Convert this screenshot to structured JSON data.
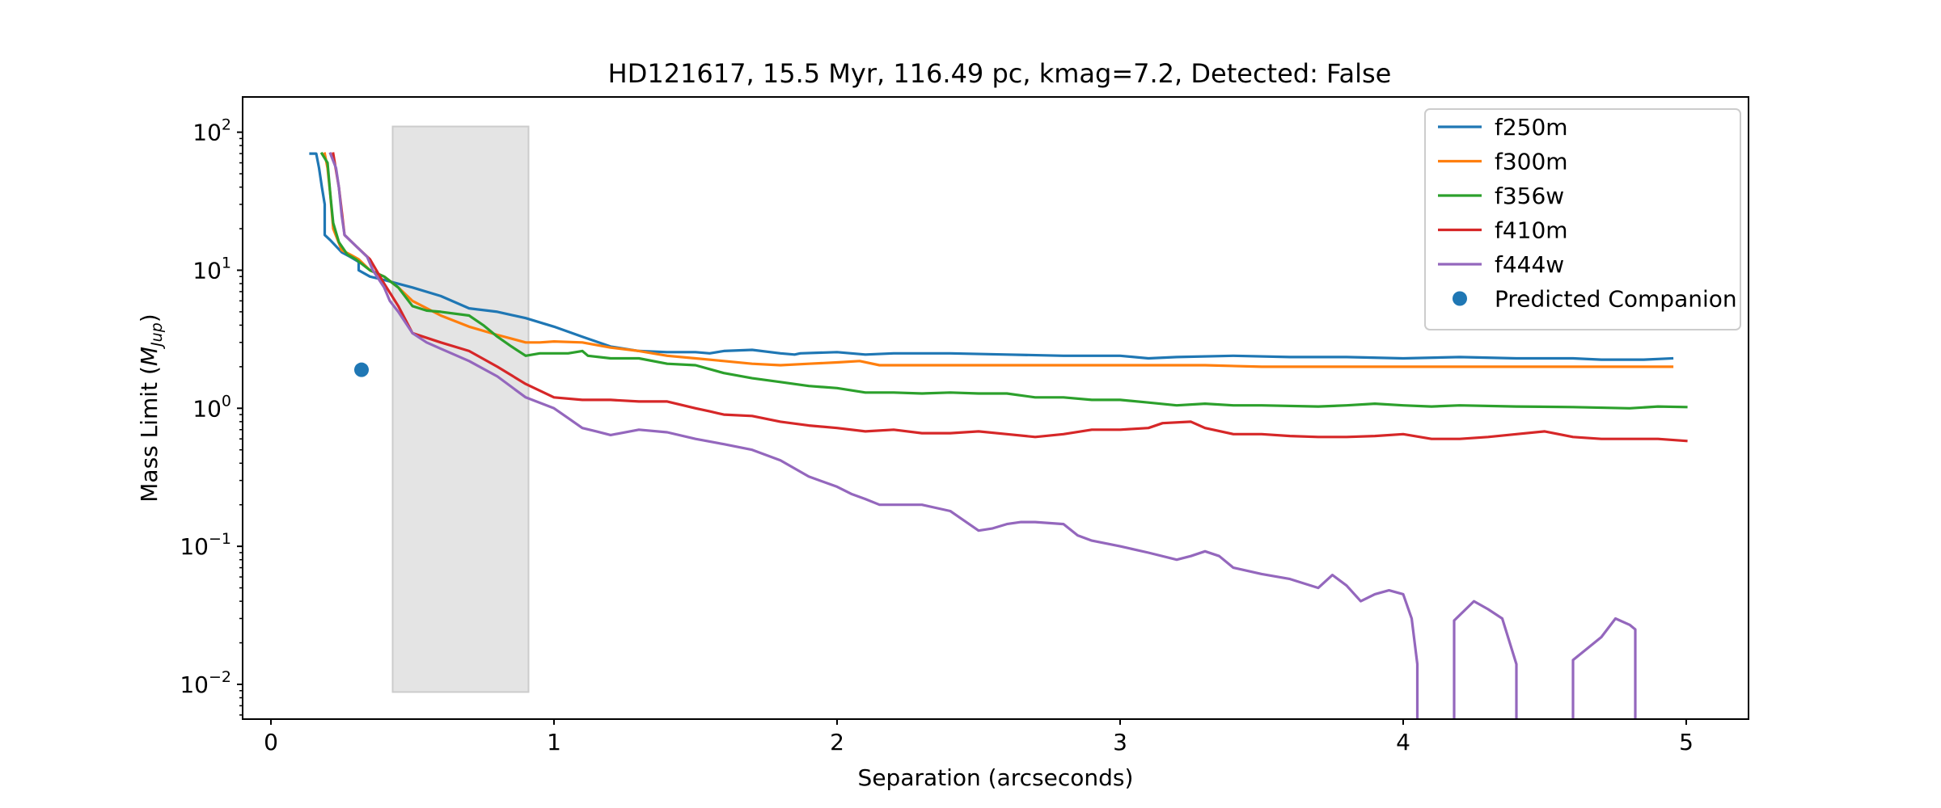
{
  "chart_data": {
    "type": "line",
    "title": "HD121617, 15.5 Myr, 116.49 pc, kmag=7.2, Detected: False",
    "xlabel": "Separation (arcseconds)",
    "ylabel_text": "Mass Limit (",
    "ylabel_math": "M",
    "ylabel_sub": "Jup",
    "ylabel_close": ")",
    "xlim": [
      -0.1,
      5.22
    ],
    "ylim": [
      0.0056,
      180
    ],
    "y_scale": "log",
    "grid": false,
    "legend_placement": "top-right",
    "x_ticks": [
      {
        "value": 0,
        "label": "0"
      },
      {
        "value": 1,
        "label": "1"
      },
      {
        "value": 2,
        "label": "2"
      },
      {
        "value": 3,
        "label": "3"
      },
      {
        "value": 4,
        "label": "4"
      },
      {
        "value": 5,
        "label": "5"
      }
    ],
    "y_ticks": [
      {
        "value": 0.01,
        "base": "10",
        "exp": "−2"
      },
      {
        "value": 0.1,
        "base": "10",
        "exp": "−1"
      },
      {
        "value": 1,
        "base": "10",
        "exp": "0"
      },
      {
        "value": 10,
        "base": "10",
        "exp": "1"
      },
      {
        "value": 100,
        "base": "10",
        "exp": "2"
      }
    ],
    "shaded_region": {
      "x": [
        0.43,
        0.91
      ],
      "y": [
        0.0088,
        110
      ],
      "color": "#e4e4e4",
      "edge": "#cccccc"
    },
    "series": [
      {
        "name": "f250m",
        "color": "#1f77b4",
        "points": [
          [
            0.14,
            70
          ],
          [
            0.16,
            70
          ],
          [
            0.17,
            55
          ],
          [
            0.18,
            40
          ],
          [
            0.19,
            30
          ],
          [
            0.19,
            18
          ],
          [
            0.21,
            16.5
          ],
          [
            0.25,
            13.5
          ],
          [
            0.28,
            12.5
          ],
          [
            0.31,
            11.5
          ],
          [
            0.31,
            10
          ],
          [
            0.35,
            9
          ],
          [
            0.4,
            8.5
          ],
          [
            0.5,
            7.5
          ],
          [
            0.6,
            6.5
          ],
          [
            0.7,
            5.3
          ],
          [
            0.8,
            5
          ],
          [
            0.9,
            4.5
          ],
          [
            1.0,
            3.9
          ],
          [
            1.1,
            3.3
          ],
          [
            1.2,
            2.8
          ],
          [
            1.3,
            2.6
          ],
          [
            1.4,
            2.55
          ],
          [
            1.5,
            2.55
          ],
          [
            1.55,
            2.5
          ],
          [
            1.6,
            2.6
          ],
          [
            1.7,
            2.65
          ],
          [
            1.8,
            2.5
          ],
          [
            1.85,
            2.45
          ],
          [
            1.87,
            2.5
          ],
          [
            2.0,
            2.55
          ],
          [
            2.1,
            2.45
          ],
          [
            2.2,
            2.5
          ],
          [
            2.4,
            2.5
          ],
          [
            2.6,
            2.45
          ],
          [
            2.8,
            2.4
          ],
          [
            3.0,
            2.4
          ],
          [
            3.1,
            2.3
          ],
          [
            3.2,
            2.35
          ],
          [
            3.4,
            2.4
          ],
          [
            3.6,
            2.35
          ],
          [
            3.8,
            2.35
          ],
          [
            4.0,
            2.3
          ],
          [
            4.2,
            2.35
          ],
          [
            4.4,
            2.3
          ],
          [
            4.6,
            2.3
          ],
          [
            4.7,
            2.25
          ],
          [
            4.85,
            2.25
          ],
          [
            4.95,
            2.3
          ]
        ]
      },
      {
        "name": "f300m",
        "color": "#ff7f0e",
        "points": [
          [
            0.19,
            70
          ],
          [
            0.2,
            55
          ],
          [
            0.21,
            35
          ],
          [
            0.22,
            20
          ],
          [
            0.25,
            14
          ],
          [
            0.28,
            13
          ],
          [
            0.31,
            12
          ],
          [
            0.35,
            10
          ],
          [
            0.4,
            9
          ],
          [
            0.45,
            7.5
          ],
          [
            0.5,
            6
          ],
          [
            0.6,
            4.7
          ],
          [
            0.7,
            3.9
          ],
          [
            0.8,
            3.4
          ],
          [
            0.9,
            3.0
          ],
          [
            0.95,
            3.0
          ],
          [
            1.0,
            3.05
          ],
          [
            1.1,
            3.0
          ],
          [
            1.2,
            2.75
          ],
          [
            1.3,
            2.6
          ],
          [
            1.4,
            2.4
          ],
          [
            1.5,
            2.3
          ],
          [
            1.6,
            2.2
          ],
          [
            1.7,
            2.1
          ],
          [
            1.8,
            2.05
          ],
          [
            1.9,
            2.1
          ],
          [
            2.0,
            2.15
          ],
          [
            2.08,
            2.2
          ],
          [
            2.15,
            2.05
          ],
          [
            2.3,
            2.05
          ],
          [
            2.4,
            2.05
          ],
          [
            2.6,
            2.05
          ],
          [
            2.8,
            2.05
          ],
          [
            3.0,
            2.05
          ],
          [
            3.3,
            2.05
          ],
          [
            3.5,
            2.0
          ],
          [
            3.7,
            2.0
          ],
          [
            4.0,
            2.0
          ],
          [
            4.3,
            2.0
          ],
          [
            4.6,
            2.0
          ],
          [
            4.8,
            2.0
          ],
          [
            4.95,
            2.0
          ]
        ]
      },
      {
        "name": "f356w",
        "color": "#2ca02c",
        "points": [
          [
            0.18,
            70
          ],
          [
            0.2,
            60
          ],
          [
            0.21,
            35
          ],
          [
            0.22,
            22
          ],
          [
            0.24,
            16
          ],
          [
            0.27,
            13
          ],
          [
            0.3,
            12
          ],
          [
            0.35,
            10
          ],
          [
            0.4,
            9
          ],
          [
            0.45,
            7.5
          ],
          [
            0.5,
            5.5
          ],
          [
            0.55,
            5.1
          ],
          [
            0.6,
            5.0
          ],
          [
            0.7,
            4.7
          ],
          [
            0.75,
            4.0
          ],
          [
            0.8,
            3.3
          ],
          [
            0.85,
            2.8
          ],
          [
            0.9,
            2.4
          ],
          [
            0.95,
            2.5
          ],
          [
            1.0,
            2.5
          ],
          [
            1.05,
            2.5
          ],
          [
            1.1,
            2.6
          ],
          [
            1.12,
            2.4
          ],
          [
            1.2,
            2.3
          ],
          [
            1.3,
            2.3
          ],
          [
            1.4,
            2.1
          ],
          [
            1.5,
            2.05
          ],
          [
            1.6,
            1.8
          ],
          [
            1.7,
            1.65
          ],
          [
            1.8,
            1.55
          ],
          [
            1.9,
            1.45
          ],
          [
            2.0,
            1.4
          ],
          [
            2.1,
            1.3
          ],
          [
            2.2,
            1.3
          ],
          [
            2.3,
            1.28
          ],
          [
            2.4,
            1.3
          ],
          [
            2.5,
            1.28
          ],
          [
            2.6,
            1.28
          ],
          [
            2.7,
            1.2
          ],
          [
            2.8,
            1.2
          ],
          [
            2.9,
            1.15
          ],
          [
            3.0,
            1.15
          ],
          [
            3.1,
            1.1
          ],
          [
            3.2,
            1.05
          ],
          [
            3.3,
            1.08
          ],
          [
            3.4,
            1.05
          ],
          [
            3.5,
            1.05
          ],
          [
            3.7,
            1.03
          ],
          [
            3.8,
            1.05
          ],
          [
            3.9,
            1.08
          ],
          [
            4.0,
            1.05
          ],
          [
            4.1,
            1.03
          ],
          [
            4.2,
            1.05
          ],
          [
            4.4,
            1.03
          ],
          [
            4.6,
            1.02
          ],
          [
            4.8,
            1.0
          ],
          [
            4.9,
            1.03
          ],
          [
            5.0,
            1.02
          ]
        ]
      },
      {
        "name": "f410m",
        "color": "#d62728",
        "points": [
          [
            0.22,
            70
          ],
          [
            0.24,
            40
          ],
          [
            0.26,
            18
          ],
          [
            0.3,
            15
          ],
          [
            0.35,
            12
          ],
          [
            0.4,
            8
          ],
          [
            0.45,
            5.5
          ],
          [
            0.5,
            3.5
          ],
          [
            0.6,
            3.0
          ],
          [
            0.7,
            2.6
          ],
          [
            0.8,
            2.0
          ],
          [
            0.9,
            1.5
          ],
          [
            1.0,
            1.2
          ],
          [
            1.1,
            1.15
          ],
          [
            1.2,
            1.15
          ],
          [
            1.3,
            1.12
          ],
          [
            1.4,
            1.12
          ],
          [
            1.5,
            1.0
          ],
          [
            1.55,
            0.95
          ],
          [
            1.6,
            0.9
          ],
          [
            1.7,
            0.88
          ],
          [
            1.8,
            0.8
          ],
          [
            1.9,
            0.75
          ],
          [
            2.0,
            0.72
          ],
          [
            2.1,
            0.68
          ],
          [
            2.2,
            0.7
          ],
          [
            2.3,
            0.66
          ],
          [
            2.4,
            0.66
          ],
          [
            2.5,
            0.68
          ],
          [
            2.6,
            0.65
          ],
          [
            2.7,
            0.62
          ],
          [
            2.8,
            0.65
          ],
          [
            2.9,
            0.7
          ],
          [
            3.0,
            0.7
          ],
          [
            3.1,
            0.72
          ],
          [
            3.15,
            0.78
          ],
          [
            3.25,
            0.8
          ],
          [
            3.3,
            0.72
          ],
          [
            3.4,
            0.65
          ],
          [
            3.5,
            0.65
          ],
          [
            3.6,
            0.63
          ],
          [
            3.7,
            0.62
          ],
          [
            3.8,
            0.62
          ],
          [
            3.9,
            0.63
          ],
          [
            4.0,
            0.65
          ],
          [
            4.1,
            0.6
          ],
          [
            4.2,
            0.6
          ],
          [
            4.3,
            0.62
          ],
          [
            4.4,
            0.65
          ],
          [
            4.5,
            0.68
          ],
          [
            4.6,
            0.62
          ],
          [
            4.7,
            0.6
          ],
          [
            4.8,
            0.6
          ],
          [
            4.9,
            0.6
          ],
          [
            5.0,
            0.58
          ]
        ]
      },
      {
        "name": "f444w",
        "color": "#9467bd",
        "segments": [
          [
            [
              0.21,
              70
            ],
            [
              0.23,
              55
            ],
            [
              0.24,
              40
            ],
            [
              0.25,
              25
            ],
            [
              0.26,
              18
            ],
            [
              0.3,
              15
            ],
            [
              0.34,
              12.5
            ],
            [
              0.36,
              10
            ],
            [
              0.4,
              7.5
            ],
            [
              0.42,
              6
            ],
            [
              0.45,
              5
            ],
            [
              0.5,
              3.5
            ],
            [
              0.55,
              3.0
            ],
            [
              0.6,
              2.7
            ],
            [
              0.7,
              2.2
            ],
            [
              0.8,
              1.7
            ],
            [
              0.9,
              1.2
            ],
            [
              1.0,
              1.0
            ],
            [
              1.05,
              0.85
            ],
            [
              1.1,
              0.72
            ],
            [
              1.15,
              0.68
            ],
            [
              1.2,
              0.64
            ],
            [
              1.3,
              0.7
            ],
            [
              1.4,
              0.67
            ],
            [
              1.5,
              0.6
            ],
            [
              1.6,
              0.55
            ],
            [
              1.7,
              0.5
            ],
            [
              1.8,
              0.42
            ],
            [
              1.9,
              0.32
            ],
            [
              2.0,
              0.27
            ],
            [
              2.05,
              0.24
            ],
            [
              2.1,
              0.22
            ],
            [
              2.15,
              0.2
            ],
            [
              2.2,
              0.2
            ],
            [
              2.3,
              0.2
            ],
            [
              2.4,
              0.18
            ],
            [
              2.5,
              0.13
            ],
            [
              2.55,
              0.135
            ],
            [
              2.6,
              0.145
            ],
            [
              2.65,
              0.15
            ],
            [
              2.7,
              0.15
            ],
            [
              2.8,
              0.145
            ],
            [
              2.85,
              0.12
            ],
            [
              2.9,
              0.11
            ],
            [
              3.0,
              0.1
            ],
            [
              3.1,
              0.09
            ],
            [
              3.2,
              0.08
            ],
            [
              3.25,
              0.085
            ],
            [
              3.3,
              0.092
            ],
            [
              3.35,
              0.085
            ],
            [
              3.4,
              0.07
            ],
            [
              3.5,
              0.063
            ],
            [
              3.6,
              0.058
            ],
            [
              3.7,
              0.05
            ],
            [
              3.75,
              0.062
            ],
            [
              3.8,
              0.052
            ],
            [
              3.85,
              0.04
            ],
            [
              3.9,
              0.045
            ],
            [
              3.95,
              0.048
            ],
            [
              4.0,
              0.045
            ],
            [
              4.03,
              0.03
            ],
            [
              4.05,
              0.014
            ],
            [
              4.05,
              0.0056
            ]
          ],
          [
            [
              4.18,
              0.0056
            ],
            [
              4.18,
              0.029
            ],
            [
              4.25,
              0.04
            ],
            [
              4.3,
              0.035
            ],
            [
              4.35,
              0.03
            ],
            [
              4.4,
              0.014
            ],
            [
              4.4,
              0.0056
            ]
          ],
          [
            [
              4.6,
              0.0056
            ],
            [
              4.6,
              0.015
            ],
            [
              4.7,
              0.022
            ],
            [
              4.75,
              0.03
            ],
            [
              4.8,
              0.027
            ],
            [
              4.82,
              0.025
            ],
            [
              4.82,
              0.0056
            ]
          ]
        ]
      }
    ],
    "scatter": {
      "name": "Predicted Companion",
      "color": "#1f77b4",
      "x": 0.32,
      "y": 1.9
    }
  }
}
